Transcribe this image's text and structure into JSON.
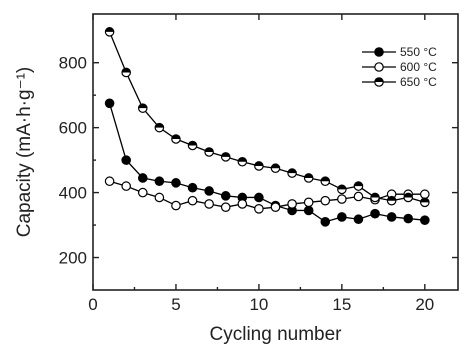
{
  "chart_data": {
    "type": "line",
    "title": "",
    "xlabel": "Cycling number",
    "ylabel": "Capacity (mA·h·g⁻¹)",
    "xlim": [
      0,
      22
    ],
    "ylim": [
      100,
      950
    ],
    "xticks": [
      0,
      5,
      10,
      15,
      20
    ],
    "yticks": [
      200,
      400,
      600,
      800
    ],
    "grid": false,
    "legend_position": "top-right",
    "x": [
      1,
      2,
      3,
      4,
      5,
      6,
      7,
      8,
      9,
      10,
      11,
      12,
      13,
      14,
      15,
      16,
      17,
      18,
      19,
      20
    ],
    "series": [
      {
        "name": "550 °C",
        "marker": "filled-circle",
        "color": "#000000",
        "values": [
          675,
          500,
          445,
          435,
          430,
          415,
          405,
          390,
          385,
          385,
          360,
          345,
          345,
          310,
          325,
          318,
          335,
          325,
          320,
          315
        ]
      },
      {
        "name": "600 °C",
        "marker": "open-circle",
        "color": "#000000",
        "values": [
          435,
          420,
          400,
          385,
          360,
          375,
          365,
          355,
          365,
          350,
          355,
          365,
          370,
          375,
          380,
          388,
          378,
          395,
          395,
          395
        ]
      },
      {
        "name": "650 °C",
        "marker": "half-filled-circle",
        "color": "#000000",
        "values": [
          895,
          770,
          660,
          600,
          565,
          545,
          525,
          510,
          495,
          482,
          475,
          460,
          445,
          435,
          410,
          420,
          385,
          375,
          385,
          370
        ]
      }
    ]
  }
}
